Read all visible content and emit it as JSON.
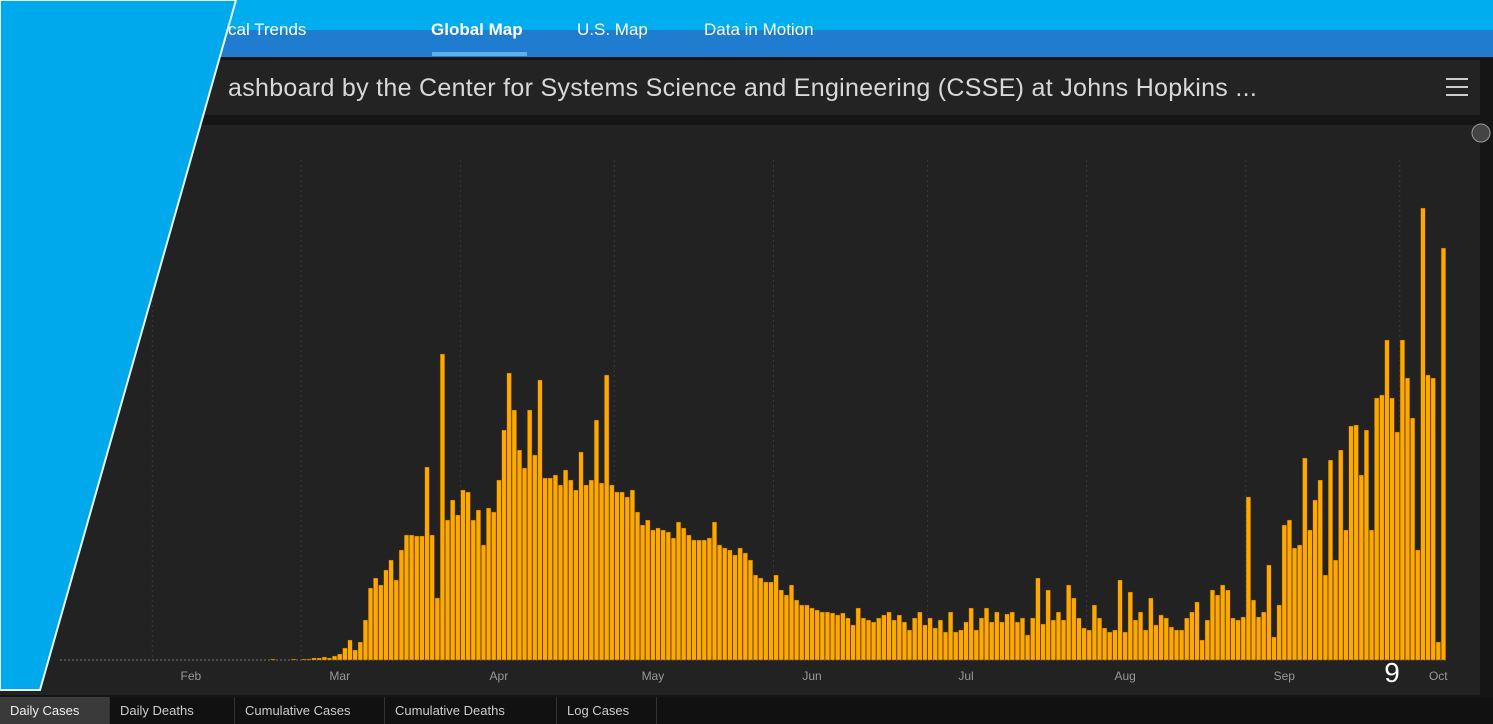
{
  "nav": [
    "cal Trends",
    "Global Map",
    "U.S. Map",
    "Data in Motion"
  ],
  "title": "ashboard by the Center for Systems Science and Engineering (CSSE) at Johns Hopkins ...",
  "overlay_text": "9",
  "tabs": [
    "Daily Cases",
    "Daily Deaths",
    "Cumulative Cases",
    "Cumulative Deaths",
    "Log Cases"
  ],
  "chart_data": {
    "type": "bar",
    "color": "#ffa800",
    "categories": [
      null,
      null,
      null,
      null,
      null,
      null,
      null,
      null,
      null,
      null,
      "Feb",
      null,
      null,
      null,
      null,
      null,
      null,
      null,
      null,
      null,
      null,
      null,
      null,
      null,
      null,
      null,
      null,
      null,
      null,
      null,
      null,
      null,
      null,
      null,
      null,
      null,
      null,
      null,
      null,
      "Mar",
      null,
      null,
      null,
      null,
      null,
      null,
      null,
      null,
      null,
      null,
      null,
      null,
      null,
      null,
      null,
      null,
      null,
      null,
      null,
      null,
      null,
      null,
      null,
      null,
      null,
      null,
      null,
      null,
      null,
      null,
      "Apr",
      null,
      null,
      null,
      null,
      null,
      null,
      null,
      null,
      null,
      null,
      null,
      null,
      null,
      null,
      null,
      null,
      null,
      null,
      null,
      null,
      null,
      null,
      null,
      null,
      null,
      null,
      null,
      null,
      null,
      "May",
      null,
      null,
      null,
      null,
      null,
      null,
      null,
      null,
      null,
      null,
      null,
      null,
      null,
      null,
      null,
      null,
      null,
      null,
      null,
      null,
      null,
      null,
      null,
      null,
      null,
      null,
      null,
      null,
      null,
      null,
      "Jun",
      null,
      null,
      null,
      null,
      null,
      null,
      null,
      null,
      null,
      null,
      null,
      null,
      null,
      null,
      null,
      null,
      null,
      null,
      null,
      null,
      null,
      null,
      null,
      null,
      null,
      null,
      null,
      null,
      null,
      "Jul",
      null,
      null,
      null,
      null,
      null,
      null,
      null,
      null,
      null,
      null,
      null,
      null,
      null,
      null,
      null,
      null,
      null,
      null,
      null,
      null,
      null,
      null,
      null,
      null,
      null,
      null,
      null,
      null,
      null,
      null,
      "Aug",
      null,
      null,
      null,
      null,
      null,
      null,
      null,
      null,
      null,
      null,
      null,
      null,
      null,
      null,
      null,
      null,
      null,
      null,
      null,
      null,
      null,
      null,
      null,
      null,
      null,
      null,
      null,
      null,
      null,
      null,
      "Sep",
      null,
      null,
      null,
      null,
      null,
      null,
      null,
      null,
      null,
      null,
      null,
      null,
      null,
      null,
      null,
      null,
      null,
      null,
      null,
      null,
      null,
      null,
      null,
      null,
      null,
      null,
      null,
      null,
      null,
      "Oct",
      null
    ],
    "values": [
      0,
      0,
      0,
      0,
      0,
      0,
      0,
      0,
      0,
      0,
      0,
      0,
      0,
      0,
      0,
      0,
      0,
      0,
      0,
      0,
      0,
      0,
      0,
      0,
      0,
      0,
      100,
      0,
      0,
      0,
      100,
      0,
      100,
      100,
      200,
      200,
      300,
      200,
      400,
      600,
      1200,
      2000,
      1000,
      1800,
      4000,
      7200,
      8200,
      7500,
      9000,
      10000,
      8000,
      11000,
      12500,
      12500,
      12400,
      12400,
      19300,
      12500,
      6200,
      30600,
      14000,
      16000,
      14500,
      17000,
      16800,
      14000,
      15000,
      11500,
      15200,
      14800,
      18000,
      23000,
      28700,
      25000,
      21000,
      19200,
      25000,
      20500,
      28000,
      18200,
      18200,
      18500,
      17500,
      19000,
      18000,
      17000,
      20800,
      17500,
      18000,
      24000,
      17700,
      28500,
      17500,
      16800,
      16800,
      16300,
      17000,
      14800,
      13500,
      14000,
      13000,
      13200,
      13000,
      12800,
      12200,
      13800,
      13200,
      12500,
      12000,
      12000,
      12000,
      12200,
      13800,
      11500,
      11200,
      11000,
      10500,
      11200,
      10700,
      10000,
      8500,
      8200,
      7800,
      7800,
      8500,
      7000,
      6500,
      7500,
      6000,
      5500,
      5500,
      5200,
      5000,
      4800,
      4800,
      4700,
      4500,
      4700,
      4200,
      3500,
      5200,
      4200,
      4000,
      3800,
      4200,
      4500,
      4800,
      4000,
      4500,
      3800,
      3000,
      4200,
      4800,
      3500,
      4200,
      3200,
      4000,
      2800,
      4800,
      2800,
      3000,
      3800,
      5200,
      3000,
      4200,
      5200,
      3800,
      4800,
      3800,
      4600,
      4800,
      3800,
      4200,
      2500,
      4200,
      8200,
      3600,
      7000,
      4000,
      4800,
      4000,
      7500,
      6200,
      4200,
      3200,
      3000,
      5500,
      4200,
      3200,
      2800,
      3000,
      8000,
      2800,
      6800,
      4000,
      4800,
      3000,
      6200,
      3500,
      4500,
      4200,
      3300,
      3000,
      3000,
      4200,
      4800,
      5800,
      2000,
      4000,
      7000,
      6500,
      7500,
      7000,
      4200,
      4000,
      4300,
      16300,
      6000,
      4300,
      4800,
      9500,
      2300,
      5500,
      13500,
      14000,
      11200,
      11500,
      20200,
      13000,
      16000,
      18000,
      8500,
      20000,
      10000,
      21000,
      13000,
      23400,
      23500,
      18500,
      23000,
      13000,
      26200,
      26500,
      32000,
      26200,
      22800,
      32000,
      28200,
      24200,
      11000,
      45200,
      28500,
      28200,
      1800,
      41200
    ],
    "ylim": [
      0,
      53000
    ],
    "yticks": [
      0
    ],
    "grid": true
  }
}
